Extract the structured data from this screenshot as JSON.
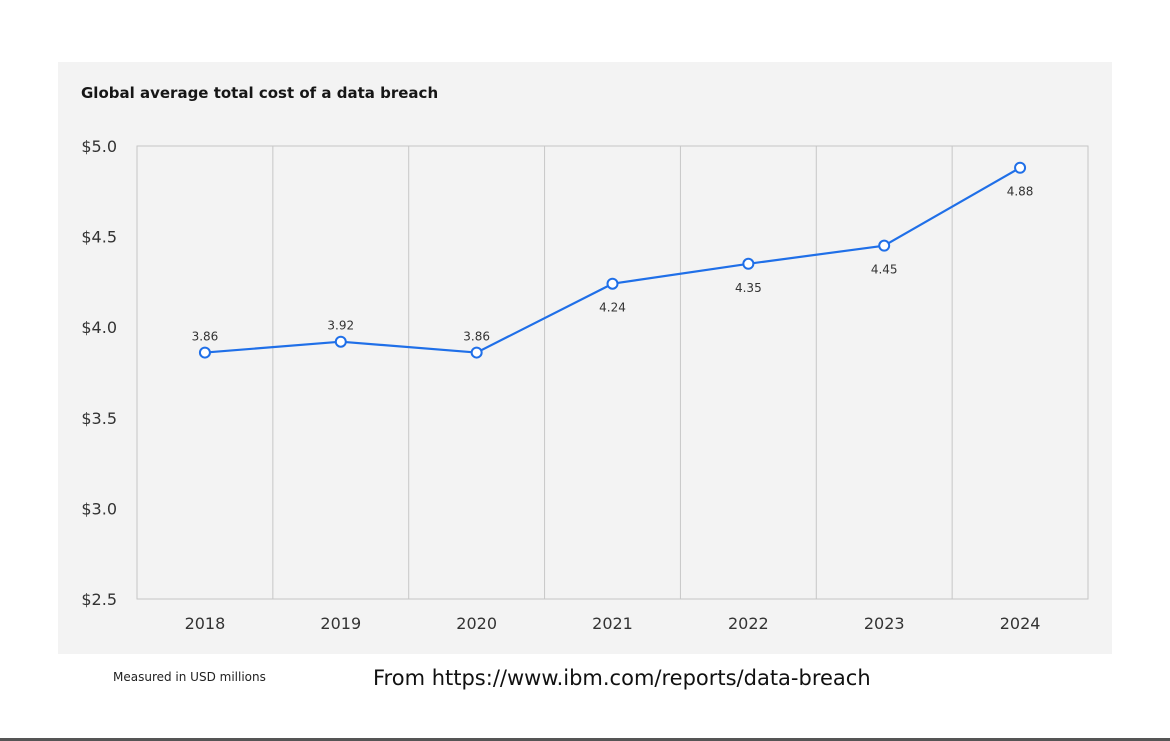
{
  "chart_data": {
    "type": "line",
    "title": "Global average total cost of a data breach",
    "categories": [
      "2018",
      "2019",
      "2020",
      "2021",
      "2022",
      "2023",
      "2024"
    ],
    "series": [
      {
        "values": [
          3.86,
          3.92,
          3.86,
          4.24,
          4.35,
          4.45,
          4.88
        ]
      }
    ],
    "data_labels": [
      "3.86",
      "3.92",
      "3.86",
      "4.24",
      "4.35",
      "4.45",
      "4.88"
    ],
    "y_ticks": [
      "$5.0",
      "$4.5",
      "$4.0",
      "$3.5",
      "$3.0",
      "$2.5"
    ],
    "y_tick_values": [
      5.0,
      4.5,
      4.0,
      3.5,
      3.0,
      2.5
    ],
    "ylim": [
      2.5,
      5.0
    ],
    "grid": "vertical",
    "colors": {
      "line": "#1f6fe8",
      "grid": "#c6c6c6",
      "panel": "#f3f3f3"
    }
  },
  "footnote": "Measured in USD millions",
  "source": "From https://www.ibm.com/reports/data-breach"
}
